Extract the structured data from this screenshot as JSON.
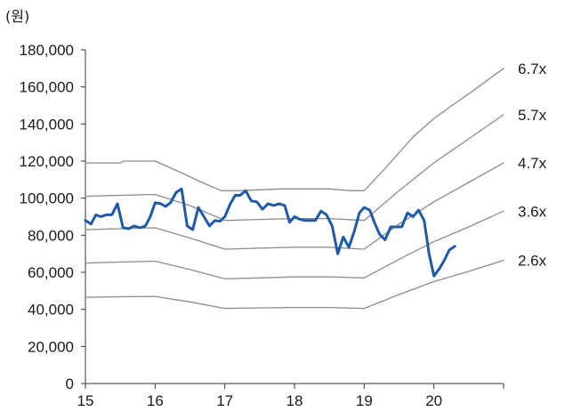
{
  "chart_data": {
    "type": "line",
    "title": "",
    "unit_label": "(원)",
    "xlabel": "",
    "ylabel": "",
    "xlim": [
      2015,
      2021.0
    ],
    "ylim": [
      0,
      180000
    ],
    "y_ticks": [
      0,
      20000,
      40000,
      60000,
      80000,
      100000,
      120000,
      140000,
      160000,
      180000
    ],
    "y_tick_labels": [
      "0",
      "20,000",
      "40,000",
      "60,000",
      "80,000",
      "100,000",
      "120,000",
      "140,000",
      "160,000",
      "180,000"
    ],
    "x_ticks": [
      2015,
      2016,
      2017,
      2018,
      2019,
      2020
    ],
    "x_tick_labels": [
      "15",
      "16",
      "17",
      "18",
      "19",
      "20"
    ],
    "grid": false,
    "series": [
      {
        "name": "6.7x",
        "color": "#8c8c8c",
        "points": [
          [
            2015.0,
            119000
          ],
          [
            2015.5,
            119000
          ],
          [
            2015.55,
            120000
          ],
          [
            2016.0,
            120000
          ],
          [
            2016.3,
            115000
          ],
          [
            2016.7,
            108000
          ],
          [
            2016.95,
            104000
          ],
          [
            2017.2,
            104000
          ],
          [
            2017.8,
            105000
          ],
          [
            2018.0,
            105000
          ],
          [
            2018.5,
            105000
          ],
          [
            2018.8,
            104000
          ],
          [
            2019.0,
            104000
          ],
          [
            2019.3,
            116000
          ],
          [
            2019.7,
            133000
          ],
          [
            2020.0,
            143000
          ],
          [
            2020.3,
            151000
          ],
          [
            2020.6,
            159000
          ],
          [
            2021.0,
            170000
          ]
        ]
      },
      {
        "name": "5.7x",
        "color": "#8c8c8c",
        "points": [
          [
            2015.0,
            101000
          ],
          [
            2015.5,
            101500
          ],
          [
            2016.0,
            102000
          ],
          [
            2016.5,
            96000
          ],
          [
            2017.0,
            88000
          ],
          [
            2017.5,
            88500
          ],
          [
            2018.0,
            89000
          ],
          [
            2018.5,
            89000
          ],
          [
            2019.0,
            88000
          ],
          [
            2019.5,
            104000
          ],
          [
            2020.0,
            119000
          ],
          [
            2020.5,
            132000
          ],
          [
            2021.0,
            145000
          ]
        ]
      },
      {
        "name": "4.7x",
        "color": "#8c8c8c",
        "points": [
          [
            2015.0,
            83000
          ],
          [
            2015.5,
            83500
          ],
          [
            2016.0,
            84000
          ],
          [
            2016.5,
            78500
          ],
          [
            2017.0,
            72500
          ],
          [
            2017.5,
            73000
          ],
          [
            2018.0,
            73500
          ],
          [
            2018.5,
            73500
          ],
          [
            2019.0,
            72500
          ],
          [
            2019.5,
            86000
          ],
          [
            2020.0,
            98000
          ],
          [
            2020.5,
            108500
          ],
          [
            2021.0,
            119000
          ]
        ]
      },
      {
        "name": "3.6x",
        "color": "#8c8c8c",
        "points": [
          [
            2015.0,
            65000
          ],
          [
            2015.5,
            65500
          ],
          [
            2016.0,
            66000
          ],
          [
            2016.5,
            61500
          ],
          [
            2017.0,
            56500
          ],
          [
            2017.5,
            57000
          ],
          [
            2018.0,
            57500
          ],
          [
            2018.5,
            57500
          ],
          [
            2019.0,
            57000
          ],
          [
            2019.5,
            67000
          ],
          [
            2020.0,
            76500
          ],
          [
            2020.5,
            84500
          ],
          [
            2021.0,
            93000
          ]
        ]
      },
      {
        "name": "2.6x",
        "color": "#8c8c8c",
        "points": [
          [
            2015.0,
            46500
          ],
          [
            2015.5,
            46800
          ],
          [
            2016.0,
            47000
          ],
          [
            2016.5,
            44000
          ],
          [
            2017.0,
            40500
          ],
          [
            2017.5,
            40800
          ],
          [
            2018.0,
            41000
          ],
          [
            2018.5,
            41000
          ],
          [
            2019.0,
            40500
          ],
          [
            2019.5,
            48000
          ],
          [
            2020.0,
            55000
          ],
          [
            2020.5,
            60500
          ],
          [
            2021.0,
            66500
          ]
        ]
      },
      {
        "name": "",
        "color": "#1f5aa6",
        "points": [
          [
            2015.0,
            88000
          ],
          [
            2015.08,
            86000
          ],
          [
            2015.15,
            91000
          ],
          [
            2015.22,
            90000
          ],
          [
            2015.3,
            91000
          ],
          [
            2015.38,
            91000
          ],
          [
            2015.46,
            97000
          ],
          [
            2015.54,
            84000
          ],
          [
            2015.62,
            83500
          ],
          [
            2015.7,
            85000
          ],
          [
            2015.78,
            84000
          ],
          [
            2015.86,
            85000
          ],
          [
            2015.93,
            90000
          ],
          [
            2016.0,
            97500
          ],
          [
            2016.08,
            97000
          ],
          [
            2016.15,
            95500
          ],
          [
            2016.22,
            97500
          ],
          [
            2016.3,
            103000
          ],
          [
            2016.38,
            105000
          ],
          [
            2016.46,
            85000
          ],
          [
            2016.54,
            83000
          ],
          [
            2016.62,
            95000
          ],
          [
            2016.7,
            90000
          ],
          [
            2016.78,
            85000
          ],
          [
            2016.86,
            88000
          ],
          [
            2016.93,
            87500
          ],
          [
            2017.0,
            90000
          ],
          [
            2017.08,
            97000
          ],
          [
            2017.15,
            101500
          ],
          [
            2017.22,
            101500
          ],
          [
            2017.3,
            104000
          ],
          [
            2017.38,
            98500
          ],
          [
            2017.46,
            98000
          ],
          [
            2017.54,
            94000
          ],
          [
            2017.62,
            97000
          ],
          [
            2017.7,
            96000
          ],
          [
            2017.78,
            97000
          ],
          [
            2017.86,
            96000
          ],
          [
            2017.93,
            87000
          ],
          [
            2018.0,
            90000
          ],
          [
            2018.08,
            88500
          ],
          [
            2018.15,
            88000
          ],
          [
            2018.22,
            88000
          ],
          [
            2018.3,
            88000
          ],
          [
            2018.38,
            93000
          ],
          [
            2018.46,
            91000
          ],
          [
            2018.54,
            85000
          ],
          [
            2018.62,
            70000
          ],
          [
            2018.7,
            79000
          ],
          [
            2018.78,
            73500
          ],
          [
            2018.86,
            82500
          ],
          [
            2018.93,
            92000
          ],
          [
            2019.0,
            95000
          ],
          [
            2019.08,
            93500
          ],
          [
            2019.15,
            86500
          ],
          [
            2019.22,
            80500
          ],
          [
            2019.3,
            77500
          ],
          [
            2019.38,
            84500
          ],
          [
            2019.46,
            84500
          ],
          [
            2019.54,
            84500
          ],
          [
            2019.62,
            92000
          ],
          [
            2019.7,
            90000
          ],
          [
            2019.78,
            93500
          ],
          [
            2019.86,
            88000
          ],
          [
            2019.93,
            70000
          ],
          [
            2020.0,
            58000
          ],
          [
            2020.08,
            62000
          ],
          [
            2020.15,
            66500
          ],
          [
            2020.22,
            72000
          ],
          [
            2020.3,
            74000
          ]
        ]
      }
    ],
    "band_labels": [
      {
        "label": "6.7x",
        "y": 170000
      },
      {
        "label": "5.7x",
        "y": 145000
      },
      {
        "label": "4.7x",
        "y": 119000
      },
      {
        "label": "3.6x",
        "y": 93000
      },
      {
        "label": "2.6x",
        "y": 66500
      }
    ]
  }
}
